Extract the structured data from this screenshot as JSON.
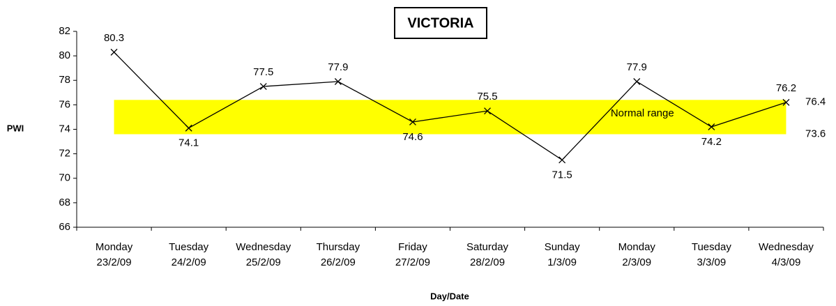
{
  "chart_data": {
    "type": "line",
    "title": "VICTORIA",
    "y_label": "PWI",
    "x_label": "Day/Date",
    "categories": [
      [
        "Monday",
        "23/2/09"
      ],
      [
        "Tuesday",
        "24/2/09"
      ],
      [
        "Wednesday",
        "25/2/09"
      ],
      [
        "Thursday",
        "26/2/09"
      ],
      [
        "Friday",
        "27/2/09"
      ],
      [
        "Saturday",
        "28/2/09"
      ],
      [
        "Sunday",
        "1/3/09"
      ],
      [
        "Monday",
        "2/3/09"
      ],
      [
        "Tuesday",
        "3/3/09"
      ],
      [
        "Wednesday",
        "4/3/09"
      ]
    ],
    "values": [
      80.3,
      74.1,
      77.5,
      77.9,
      74.6,
      75.5,
      71.5,
      77.9,
      74.2,
      76.2
    ],
    "color": "#000000",
    "band": {
      "label": "Normal range",
      "low": 73.6,
      "high": 76.4,
      "color": "#ffff00"
    },
    "ylim": [
      66,
      82
    ],
    "yticks": [
      66,
      68,
      70,
      72,
      74,
      76,
      78,
      80,
      82
    ]
  }
}
